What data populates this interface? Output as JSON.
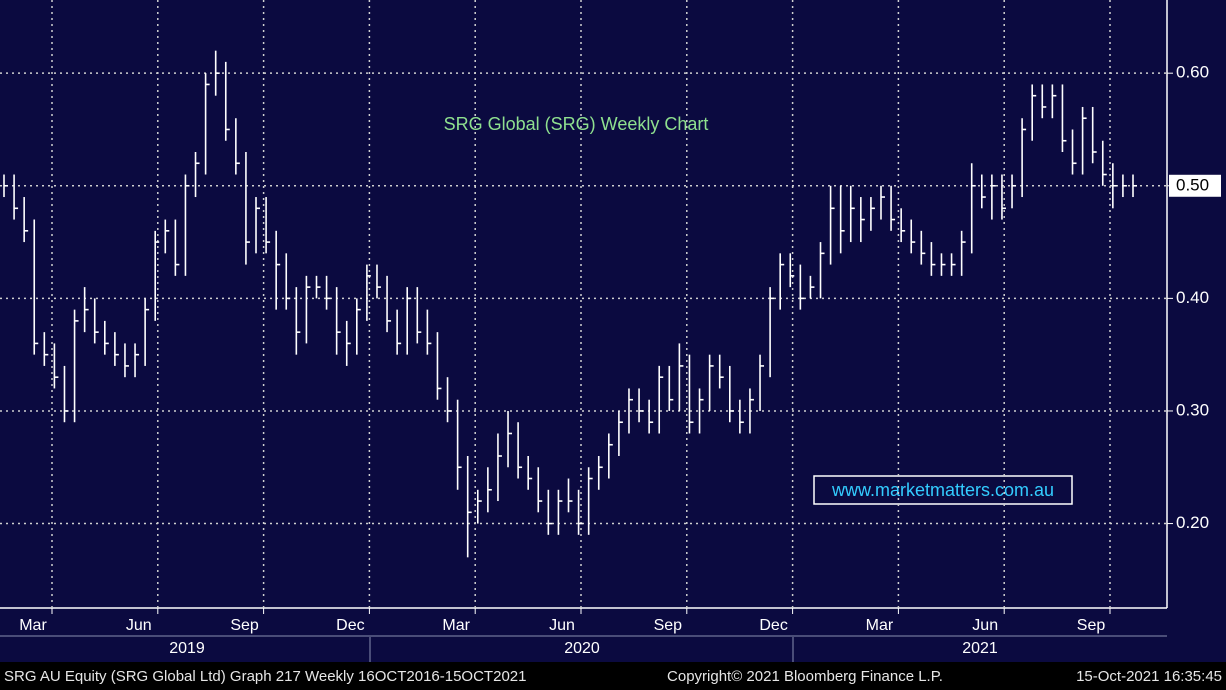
{
  "chart_data": {
    "type": "ohlc",
    "title": "SRG Global (SRG) Weekly Chart",
    "watermark": "www.marketmatters.com.au",
    "color": "#ffffff",
    "high": [
      0.51,
      0.51,
      0.49,
      0.47,
      0.37,
      0.36,
      0.34,
      0.39,
      0.41,
      0.4,
      0.38,
      0.37,
      0.36,
      0.36,
      0.4,
      0.46,
      0.47,
      0.47,
      0.51,
      0.53,
      0.6,
      0.62,
      0.61,
      0.56,
      0.53,
      0.49,
      0.49,
      0.46,
      0.44,
      0.41,
      0.42,
      0.42,
      0.42,
      0.41,
      0.38,
      0.4,
      0.43,
      0.43,
      0.42,
      0.39,
      0.41,
      0.41,
      0.39,
      0.37,
      0.33,
      0.31,
      0.26,
      0.23,
      0.25,
      0.28,
      0.3,
      0.29,
      0.26,
      0.25,
      0.23,
      0.23,
      0.24,
      0.23,
      0.25,
      0.26,
      0.28,
      0.3,
      0.32,
      0.32,
      0.31,
      0.34,
      0.34,
      0.36,
      0.35,
      0.32,
      0.35,
      0.35,
      0.34,
      0.31,
      0.32,
      0.35,
      0.41,
      0.44,
      0.44,
      0.43,
      0.42,
      0.45,
      0.5,
      0.5,
      0.5,
      0.49,
      0.49,
      0.5,
      0.5,
      0.48,
      0.47,
      0.46,
      0.45,
      0.44,
      0.44,
      0.46,
      0.52,
      0.51,
      0.51,
      0.51,
      0.51,
      0.56,
      0.59,
      0.59,
      0.59,
      0.59,
      0.55,
      0.57,
      0.57,
      0.54,
      0.52,
      0.51,
      0.51
    ],
    "low": [
      0.49,
      0.47,
      0.45,
      0.35,
      0.34,
      0.32,
      0.29,
      0.29,
      0.37,
      0.36,
      0.35,
      0.34,
      0.33,
      0.33,
      0.34,
      0.38,
      0.44,
      0.42,
      0.42,
      0.49,
      0.51,
      0.58,
      0.54,
      0.51,
      0.43,
      0.44,
      0.44,
      0.39,
      0.39,
      0.35,
      0.36,
      0.4,
      0.39,
      0.35,
      0.34,
      0.35,
      0.38,
      0.4,
      0.37,
      0.35,
      0.35,
      0.36,
      0.35,
      0.31,
      0.29,
      0.23,
      0.17,
      0.2,
      0.21,
      0.22,
      0.25,
      0.24,
      0.23,
      0.21,
      0.19,
      0.19,
      0.21,
      0.19,
      0.19,
      0.23,
      0.24,
      0.26,
      0.28,
      0.29,
      0.28,
      0.28,
      0.3,
      0.3,
      0.28,
      0.28,
      0.3,
      0.32,
      0.29,
      0.28,
      0.28,
      0.3,
      0.33,
      0.39,
      0.41,
      0.39,
      0.4,
      0.4,
      0.43,
      0.44,
      0.45,
      0.45,
      0.46,
      0.47,
      0.46,
      0.45,
      0.44,
      0.43,
      0.42,
      0.42,
      0.42,
      0.42,
      0.44,
      0.48,
      0.47,
      0.47,
      0.48,
      0.49,
      0.54,
      0.56,
      0.56,
      0.53,
      0.51,
      0.51,
      0.52,
      0.5,
      0.48,
      0.49,
      0.49
    ],
    "close": [
      0.5,
      0.48,
      0.46,
      0.36,
      0.35,
      0.33,
      0.3,
      0.38,
      0.39,
      0.37,
      0.36,
      0.35,
      0.34,
      0.35,
      0.39,
      0.45,
      0.46,
      0.43,
      0.5,
      0.52,
      0.59,
      0.6,
      0.55,
      0.52,
      0.45,
      0.48,
      0.45,
      0.43,
      0.4,
      0.37,
      0.41,
      0.41,
      0.4,
      0.37,
      0.36,
      0.39,
      0.42,
      0.41,
      0.38,
      0.36,
      0.4,
      0.37,
      0.36,
      0.32,
      0.3,
      0.25,
      0.21,
      0.22,
      0.23,
      0.26,
      0.28,
      0.25,
      0.24,
      0.22,
      0.2,
      0.22,
      0.22,
      0.2,
      0.24,
      0.25,
      0.27,
      0.29,
      0.31,
      0.3,
      0.29,
      0.33,
      0.31,
      0.34,
      0.29,
      0.31,
      0.34,
      0.33,
      0.3,
      0.29,
      0.31,
      0.34,
      0.4,
      0.43,
      0.42,
      0.4,
      0.41,
      0.44,
      0.48,
      0.46,
      0.48,
      0.47,
      0.48,
      0.49,
      0.47,
      0.46,
      0.45,
      0.44,
      0.43,
      0.43,
      0.43,
      0.45,
      0.5,
      0.49,
      0.5,
      0.48,
      0.5,
      0.55,
      0.58,
      0.57,
      0.58,
      0.54,
      0.52,
      0.56,
      0.53,
      0.51,
      0.5,
      0.5,
      0.5
    ],
    "last_value": {
      "value": 0.5,
      "label": "0.50"
    },
    "ylim": [
      0.125,
      0.665
    ],
    "yticks": [
      {
        "value": 0.2,
        "label": "0.20"
      },
      {
        "value": 0.3,
        "label": "0.30"
      },
      {
        "value": 0.4,
        "label": "0.40"
      },
      {
        "value": 0.5,
        "label": "0.50"
      },
      {
        "value": 0.6,
        "label": "0.60"
      }
    ],
    "grid": true,
    "x_labels": [
      "Mar",
      "Jun",
      "Sep",
      "Dec",
      "Mar",
      "Jun",
      "Sep",
      "Dec",
      "Mar",
      "Jun",
      "Sep"
    ],
    "year_labels": [
      "2019",
      "2020",
      "2021"
    ]
  },
  "footer": {
    "left": "SRG AU Equity (SRG Global Ltd) Graph 217  Weekly 16OCT2016-15OCT2021",
    "center": "Copyright© 2021 Bloomberg Finance L.P.",
    "right": "15-Oct-2021 16:35:45"
  }
}
